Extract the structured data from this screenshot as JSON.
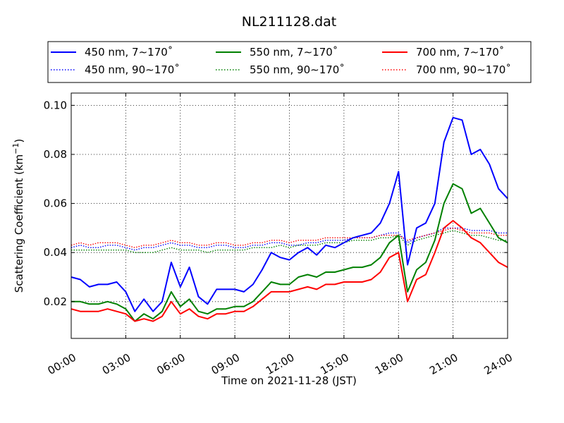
{
  "chart_data": {
    "type": "line",
    "title": "NL211128.dat",
    "xlabel": "Time on 2021-11-28 (JST)",
    "ylabel_main": "Scattering Coefficient (km",
    "ylabel_sup": "−1",
    "ylabel_end": ")",
    "x_unit": "hours",
    "xlim": [
      0,
      24
    ],
    "ylim": [
      0.005,
      0.105
    ],
    "x_ticks": [
      0,
      3,
      6,
      9,
      12,
      15,
      18,
      21,
      24
    ],
    "x_tick_labels": [
      "00:00",
      "03:00",
      "06:00",
      "09:00",
      "12:00",
      "15:00",
      "18:00",
      "21:00",
      "24:00"
    ],
    "y_ticks": [
      0.02,
      0.04,
      0.06,
      0.08,
      0.1
    ],
    "y_tick_labels": [
      "0.02",
      "0.04",
      "0.06",
      "0.08",
      "0.10"
    ],
    "grid": true,
    "legend_position": "above plot, three columns",
    "x": [
      0,
      0.5,
      1,
      1.5,
      2,
      2.5,
      3,
      3.5,
      4,
      4.5,
      5,
      5.5,
      6,
      6.5,
      7,
      7.5,
      8,
      8.5,
      9,
      9.5,
      10,
      10.5,
      11,
      11.5,
      12,
      12.5,
      13,
      13.5,
      14,
      14.5,
      15,
      15.5,
      16,
      16.5,
      17,
      17.5,
      18,
      18.5,
      19,
      19.5,
      20,
      20.5,
      21,
      21.5,
      22,
      22.5,
      23,
      23.5,
      24
    ],
    "series": [
      {
        "name": "450 nm, 7∼170˚",
        "color": "#0000ff",
        "style": "solid",
        "values": [
          0.03,
          0.029,
          0.026,
          0.027,
          0.027,
          0.028,
          0.024,
          0.016,
          0.021,
          0.016,
          0.02,
          0.036,
          0.026,
          0.034,
          0.022,
          0.019,
          0.025,
          0.025,
          0.025,
          0.024,
          0.027,
          0.033,
          0.04,
          0.038,
          0.037,
          0.04,
          0.042,
          0.039,
          0.043,
          0.042,
          0.044,
          0.046,
          0.047,
          0.048,
          0.052,
          0.06,
          0.073,
          0.035,
          0.05,
          0.052,
          0.06,
          0.085,
          0.095,
          0.094,
          0.08,
          0.082,
          0.076,
          0.066,
          0.062
        ]
      },
      {
        "name": "550 nm, 7∼170˚",
        "color": "#008000",
        "style": "solid",
        "values": [
          0.02,
          0.02,
          0.019,
          0.019,
          0.02,
          0.019,
          0.017,
          0.012,
          0.015,
          0.013,
          0.016,
          0.024,
          0.018,
          0.021,
          0.016,
          0.015,
          0.017,
          0.017,
          0.018,
          0.018,
          0.02,
          0.024,
          0.028,
          0.027,
          0.027,
          0.03,
          0.031,
          0.03,
          0.032,
          0.032,
          0.033,
          0.034,
          0.034,
          0.035,
          0.038,
          0.044,
          0.047,
          0.024,
          0.033,
          0.036,
          0.045,
          0.06,
          0.068,
          0.066,
          0.056,
          0.058,
          0.052,
          0.046,
          0.044
        ]
      },
      {
        "name": "700 nm, 7∼170˚",
        "color": "#ff0000",
        "style": "solid",
        "values": [
          0.017,
          0.016,
          0.016,
          0.016,
          0.017,
          0.016,
          0.015,
          0.012,
          0.013,
          0.012,
          0.014,
          0.02,
          0.015,
          0.017,
          0.014,
          0.013,
          0.015,
          0.015,
          0.016,
          0.016,
          0.018,
          0.021,
          0.024,
          0.024,
          0.024,
          0.025,
          0.026,
          0.025,
          0.027,
          0.027,
          0.028,
          0.028,
          0.028,
          0.029,
          0.032,
          0.038,
          0.04,
          0.02,
          0.029,
          0.031,
          0.04,
          0.05,
          0.053,
          0.05,
          0.046,
          0.044,
          0.04,
          0.036,
          0.034
        ]
      },
      {
        "name": "450 nm, 90∼170˚",
        "color": "#0000ff",
        "style": "dotted",
        "values": [
          0.042,
          0.043,
          0.042,
          0.042,
          0.043,
          0.043,
          0.042,
          0.041,
          0.042,
          0.042,
          0.043,
          0.044,
          0.043,
          0.043,
          0.042,
          0.042,
          0.043,
          0.043,
          0.042,
          0.042,
          0.043,
          0.043,
          0.044,
          0.044,
          0.043,
          0.043,
          0.044,
          0.044,
          0.045,
          0.045,
          0.045,
          0.046,
          0.046,
          0.046,
          0.047,
          0.048,
          0.048,
          0.044,
          0.046,
          0.047,
          0.048,
          0.05,
          0.05,
          0.05,
          0.049,
          0.049,
          0.049,
          0.048,
          0.048
        ]
      },
      {
        "name": "550 nm, 90∼170˚",
        "color": "#008000",
        "style": "dotted",
        "values": [
          0.041,
          0.041,
          0.041,
          0.041,
          0.041,
          0.041,
          0.041,
          0.04,
          0.04,
          0.04,
          0.041,
          0.042,
          0.041,
          0.041,
          0.041,
          0.04,
          0.041,
          0.041,
          0.041,
          0.041,
          0.042,
          0.042,
          0.042,
          0.043,
          0.042,
          0.043,
          0.043,
          0.043,
          0.044,
          0.044,
          0.044,
          0.045,
          0.045,
          0.045,
          0.046,
          0.046,
          0.047,
          0.043,
          0.045,
          0.046,
          0.047,
          0.048,
          0.049,
          0.048,
          0.047,
          0.047,
          0.046,
          0.045,
          0.045
        ]
      },
      {
        "name": "700 nm, 90∼170˚",
        "color": "#ff0000",
        "style": "dotted",
        "values": [
          0.043,
          0.044,
          0.043,
          0.044,
          0.044,
          0.044,
          0.043,
          0.042,
          0.043,
          0.043,
          0.044,
          0.045,
          0.044,
          0.044,
          0.043,
          0.043,
          0.044,
          0.044,
          0.043,
          0.043,
          0.044,
          0.044,
          0.045,
          0.045,
          0.044,
          0.045,
          0.045,
          0.045,
          0.046,
          0.046,
          0.046,
          0.046,
          0.046,
          0.046,
          0.047,
          0.047,
          0.047,
          0.045,
          0.046,
          0.047,
          0.048,
          0.049,
          0.05,
          0.049,
          0.048,
          0.048,
          0.048,
          0.047,
          0.047
        ]
      }
    ]
  }
}
